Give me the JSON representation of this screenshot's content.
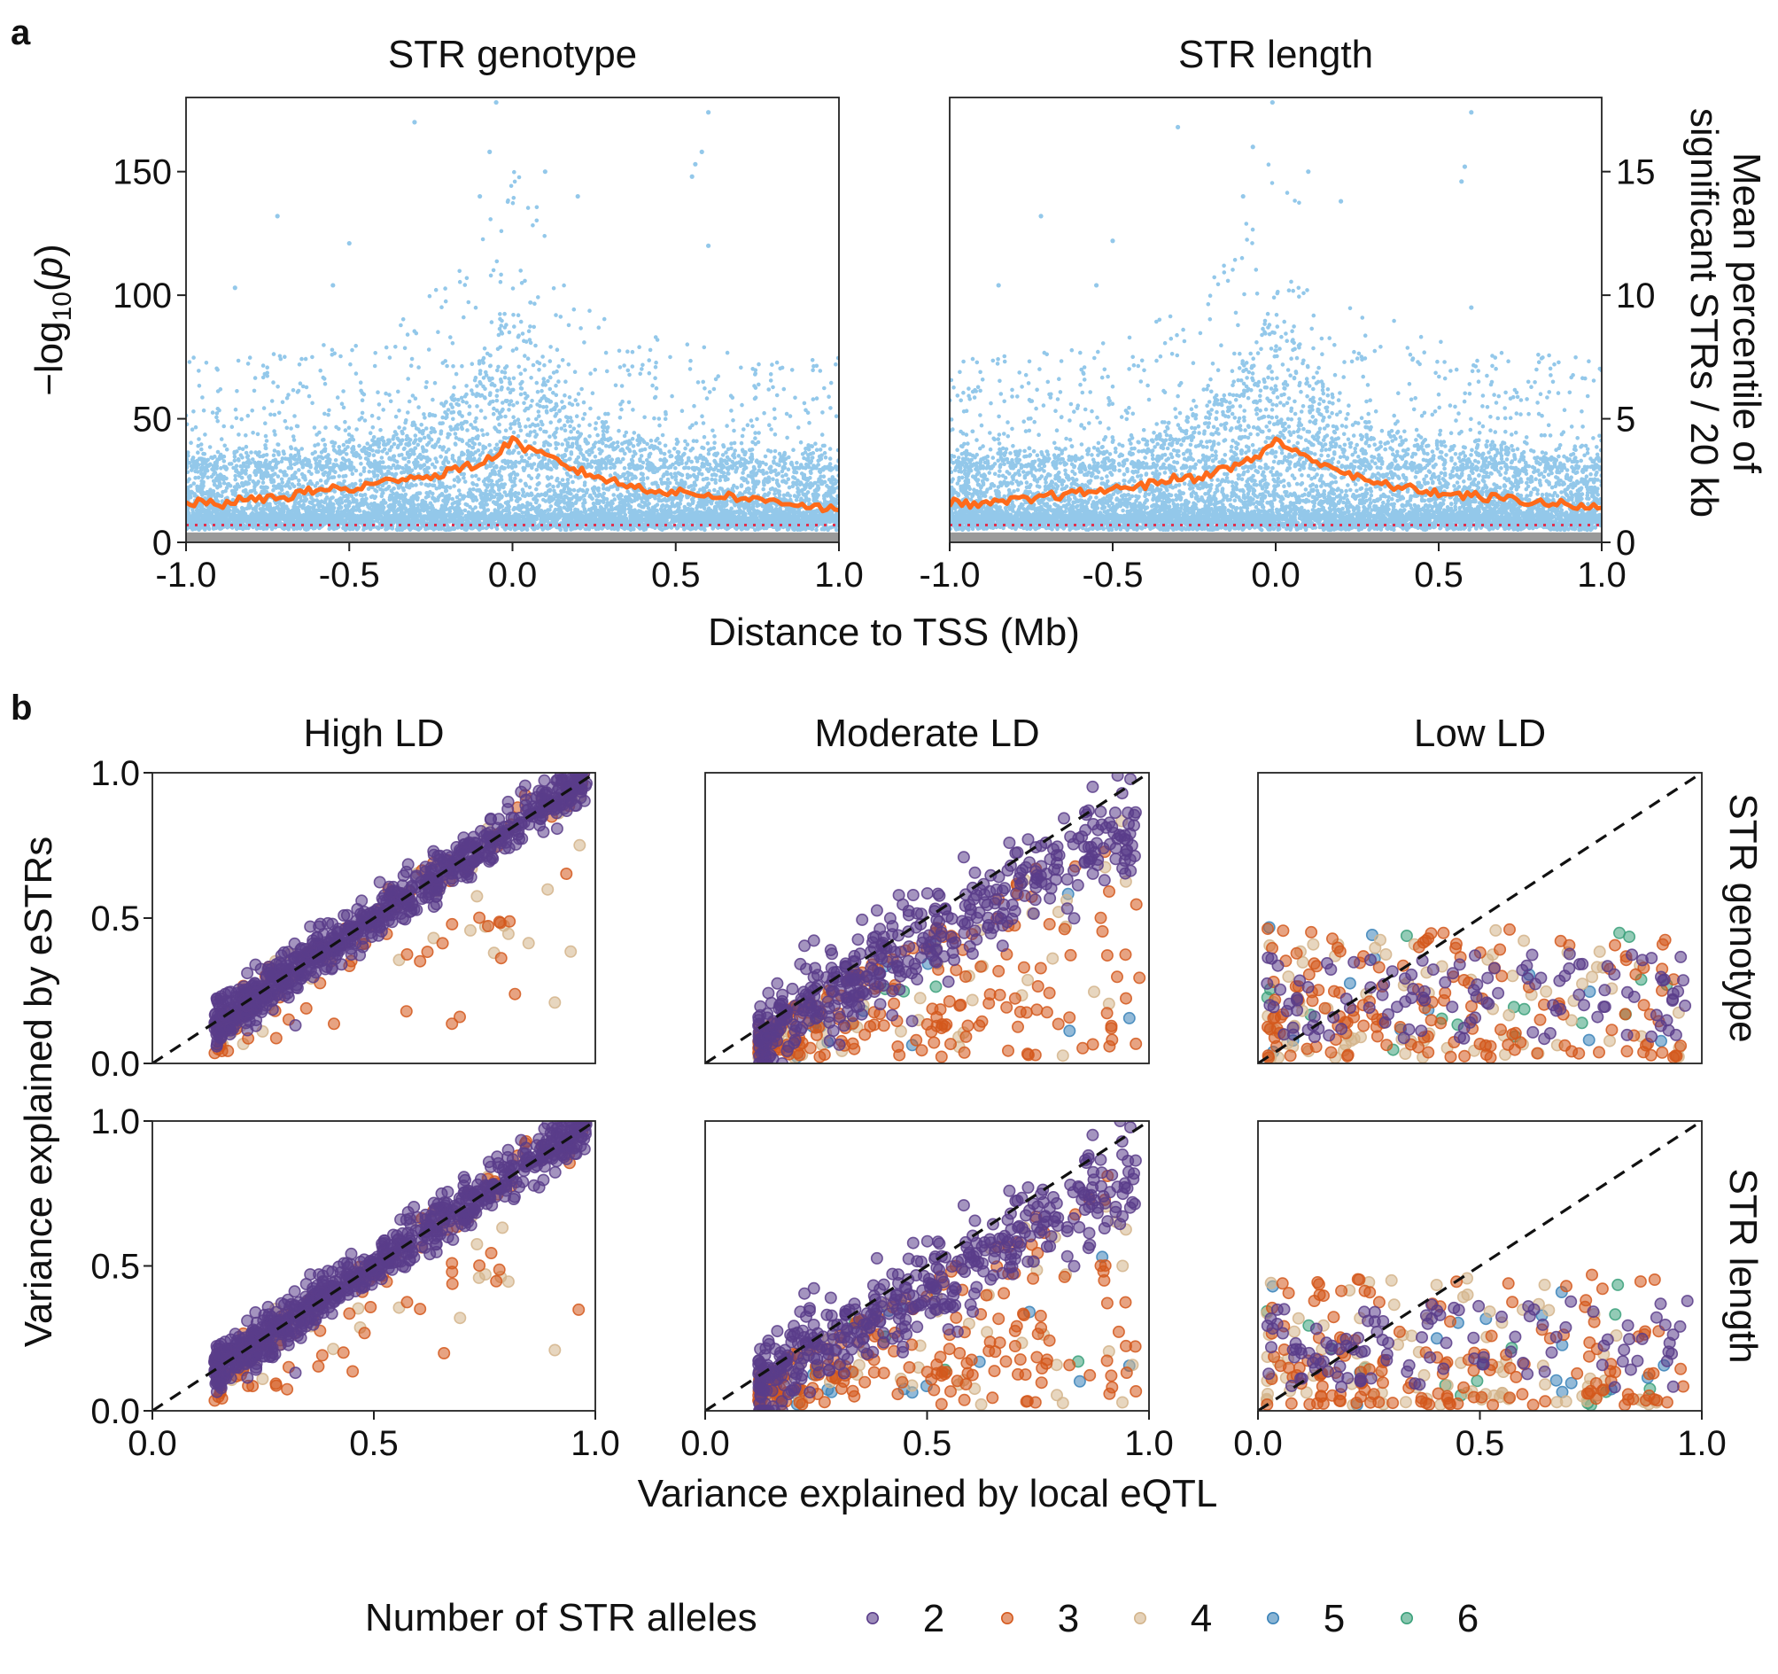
{
  "figure": {
    "panel_labels": [
      "a",
      "b"
    ]
  },
  "chart_data": [
    {
      "id": "a",
      "type": "scatter",
      "panel_label": "a",
      "facets": [
        "STR genotype",
        "STR length"
      ],
      "xlabel": "Distance to TSS (Mb)",
      "ylabel": "−log10(p)",
      "ylabel_parts": {
        "pre": "−log",
        "sub": "10",
        "post": "(",
        "var": "p",
        "close": ")"
      },
      "y2label_lines": [
        "Mean percentile of",
        "significant STRs / 20 kb"
      ],
      "xlim": [
        -1.0,
        1.0
      ],
      "ylim": [
        0,
        180
      ],
      "y2lim": [
        0,
        18
      ],
      "xticks": [
        -1.0,
        -0.5,
        0.0,
        0.5,
        1.0
      ],
      "xtick_labels": [
        "-1.0",
        "-0.5",
        "0.0",
        "0.5",
        "1.0"
      ],
      "yticks": [
        0,
        50,
        100,
        150
      ],
      "ytick_labels": [
        "0",
        "50",
        "100",
        "150"
      ],
      "y2ticks": [
        0,
        5,
        10,
        15
      ],
      "y2tick_labels": [
        "0",
        "5",
        "10",
        "15"
      ],
      "colors": {
        "points": "#93c8ea",
        "nonsig_band": "#9a9a9a",
        "trend": "#ff6a1a",
        "threshold": "#e0304f"
      },
      "significance_threshold": 7,
      "nonsignificant_band_top": 4,
      "series": [
        {
          "name": "STR genotype",
          "trend_x": [
            -1.0,
            -0.95,
            -0.9,
            -0.85,
            -0.8,
            -0.75,
            -0.7,
            -0.65,
            -0.6,
            -0.55,
            -0.5,
            -0.45,
            -0.4,
            -0.35,
            -0.3,
            -0.25,
            -0.2,
            -0.15,
            -0.1,
            -0.05,
            0.0,
            0.05,
            0.1,
            0.15,
            0.2,
            0.25,
            0.3,
            0.35,
            0.4,
            0.45,
            0.5,
            0.55,
            0.6,
            0.65,
            0.7,
            0.75,
            0.8,
            0.85,
            0.9,
            0.95,
            1.0
          ],
          "trend_y": [
            1.6,
            1.6,
            1.5,
            1.7,
            1.7,
            1.8,
            1.8,
            2.0,
            2.1,
            2.2,
            2.1,
            2.3,
            2.4,
            2.6,
            2.7,
            2.6,
            2.9,
            3.0,
            3.2,
            3.5,
            4.2,
            3.7,
            3.5,
            3.2,
            2.9,
            2.7,
            2.5,
            2.3,
            2.2,
            2.1,
            2.0,
            2.0,
            1.9,
            1.9,
            1.8,
            1.7,
            1.7,
            1.6,
            1.5,
            1.4,
            1.3
          ],
          "outliers": [
            [
              -0.05,
              178
            ],
            [
              -0.07,
              158
            ],
            [
              -0.3,
              170
            ],
            [
              0.55,
              148
            ],
            [
              0.6,
              174
            ],
            [
              0.58,
              158
            ],
            [
              0.56,
              153
            ],
            [
              -0.72,
              132
            ],
            [
              -0.5,
              121
            ],
            [
              -0.85,
              103
            ],
            [
              -0.55,
              104
            ],
            [
              0.6,
              120
            ],
            [
              -0.1,
              140
            ],
            [
              0.2,
              140
            ],
            [
              0.1,
              150
            ]
          ]
        },
        {
          "name": "STR length",
          "trend_x": [
            -1.0,
            -0.95,
            -0.9,
            -0.85,
            -0.8,
            -0.75,
            -0.7,
            -0.65,
            -0.6,
            -0.55,
            -0.5,
            -0.45,
            -0.4,
            -0.35,
            -0.3,
            -0.25,
            -0.2,
            -0.15,
            -0.1,
            -0.05,
            0.0,
            0.05,
            0.1,
            0.15,
            0.2,
            0.25,
            0.3,
            0.35,
            0.4,
            0.45,
            0.5,
            0.55,
            0.6,
            0.65,
            0.7,
            0.75,
            0.8,
            0.85,
            0.9,
            0.95,
            1.0
          ],
          "trend_y": [
            1.6,
            1.6,
            1.5,
            1.6,
            1.7,
            1.7,
            1.9,
            1.9,
            2.0,
            2.1,
            2.1,
            2.3,
            2.3,
            2.5,
            2.6,
            2.6,
            2.8,
            3.0,
            3.2,
            3.5,
            4.2,
            3.7,
            3.4,
            3.2,
            2.9,
            2.6,
            2.4,
            2.3,
            2.2,
            2.1,
            2.0,
            1.9,
            1.9,
            1.8,
            1.8,
            1.7,
            1.6,
            1.6,
            1.5,
            1.4,
            1.4
          ],
          "outliers": [
            [
              -0.01,
              178
            ],
            [
              -0.07,
              160
            ],
            [
              -0.3,
              168
            ],
            [
              0.6,
              174
            ],
            [
              0.58,
              152
            ],
            [
              0.57,
              146
            ],
            [
              -0.72,
              132
            ],
            [
              -0.5,
              122
            ],
            [
              -0.85,
              104
            ],
            [
              -0.55,
              104
            ],
            [
              0.6,
              95
            ],
            [
              -0.1,
              140
            ],
            [
              0.2,
              138
            ],
            [
              0.1,
              150
            ]
          ]
        }
      ]
    },
    {
      "id": "b",
      "type": "scatter",
      "panel_label": "b",
      "col_facets": [
        "High LD",
        "Moderate LD",
        "Low LD"
      ],
      "row_facets": [
        "STR genotype",
        "STR length"
      ],
      "xlabel": "Variance explained by local eQTL",
      "ylabel": "Variance explained by eSTRs",
      "xlim": [
        0.0,
        1.0
      ],
      "ylim": [
        0.0,
        1.0
      ],
      "xticks": [
        0.0,
        0.5,
        1.0
      ],
      "xtick_labels": [
        "0.0",
        "0.5",
        "1.0"
      ],
      "yticks": [
        0.0,
        0.5,
        1.0
      ],
      "ytick_labels": [
        "0.0",
        "0.5",
        "1.0"
      ],
      "reference_line": "y = x (dashed)",
      "legend": {
        "title": "Number of STR alleles",
        "position": "bottom",
        "entries": [
          {
            "label": "2",
            "color": "#5a3d8a"
          },
          {
            "label": "3",
            "color": "#d4581c"
          },
          {
            "label": "4",
            "color": "#d3b48b"
          },
          {
            "label": "5",
            "color": "#3a82b8"
          },
          {
            "label": "6",
            "color": "#3aa07a"
          }
        ]
      },
      "approx_point_counts": {
        "High LD": 900,
        "Moderate LD": 700,
        "Low LD": 380
      }
    }
  ]
}
